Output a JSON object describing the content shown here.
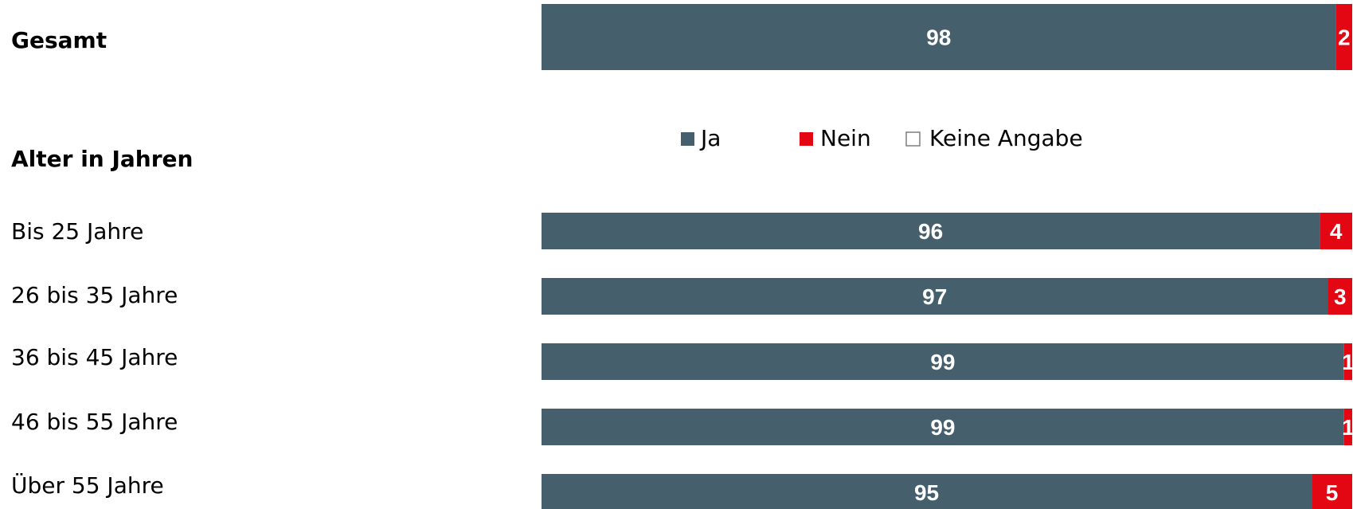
{
  "chart_data": {
    "type": "bar",
    "orientation": "horizontal",
    "stacked": true,
    "xlim": [
      0,
      100
    ],
    "grid": false,
    "legend_position": "top-center",
    "section_title": "Alter in Jahren",
    "categories": [
      "Gesamt",
      "Bis 25 Jahre",
      "26 bis 35 Jahre",
      "36 bis 45 Jahre",
      "46 bis 55 Jahre",
      "Über 55 Jahre"
    ],
    "series": [
      {
        "name": "Ja",
        "color": "#455f6c",
        "values": [
          98,
          96,
          97,
          99,
          99,
          95
        ]
      },
      {
        "name": "Nein",
        "color": "#e30613",
        "values": [
          2,
          4,
          3,
          1,
          1,
          5
        ]
      },
      {
        "name": "Keine Angabe",
        "color": "#ffffff",
        "values": [
          0,
          0,
          0,
          0,
          0,
          0
        ]
      }
    ],
    "data_labels": [
      [
        "98",
        "96",
        "97",
        "99",
        "99",
        "95"
      ],
      [
        "2",
        "4",
        "3",
        "1",
        "1",
        "5"
      ]
    ]
  }
}
